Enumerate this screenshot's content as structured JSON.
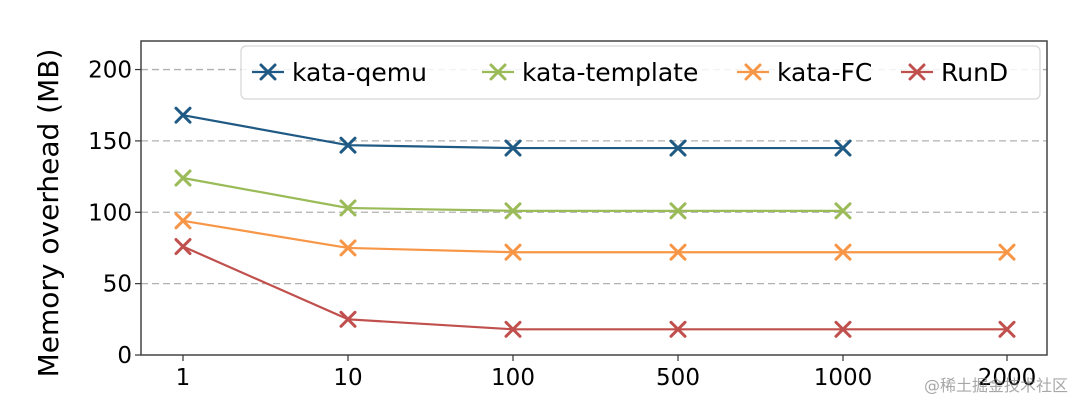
{
  "chart_data": {
    "type": "line",
    "title": "",
    "xlabel": "",
    "ylabel": "Memory overhead (MB)",
    "categories": [
      "1",
      "10",
      "100",
      "500",
      "1000",
      "2000"
    ],
    "ylim": [
      0,
      220
    ],
    "yticks": [
      0,
      50,
      100,
      150,
      200
    ],
    "grid": {
      "y": true,
      "style": "dashed",
      "color": "#b0b0b0"
    },
    "legend_position": "upper right, horizontal",
    "marker": "x",
    "series": [
      {
        "name": "kata-qemu",
        "color": "#1f5a85",
        "values": [
          168,
          147,
          145,
          145,
          145,
          null
        ]
      },
      {
        "name": "kata-template",
        "color": "#9bbb59",
        "values": [
          124,
          103,
          101,
          101,
          101,
          null
        ]
      },
      {
        "name": "kata-FC",
        "color": "#f79646",
        "values": [
          94,
          75,
          72,
          72,
          72,
          72
        ]
      },
      {
        "name": "RunD",
        "color": "#c0504d",
        "values": [
          76,
          25,
          18,
          18,
          18,
          18
        ]
      }
    ]
  },
  "watermark": "@稀土掘金技术社区"
}
